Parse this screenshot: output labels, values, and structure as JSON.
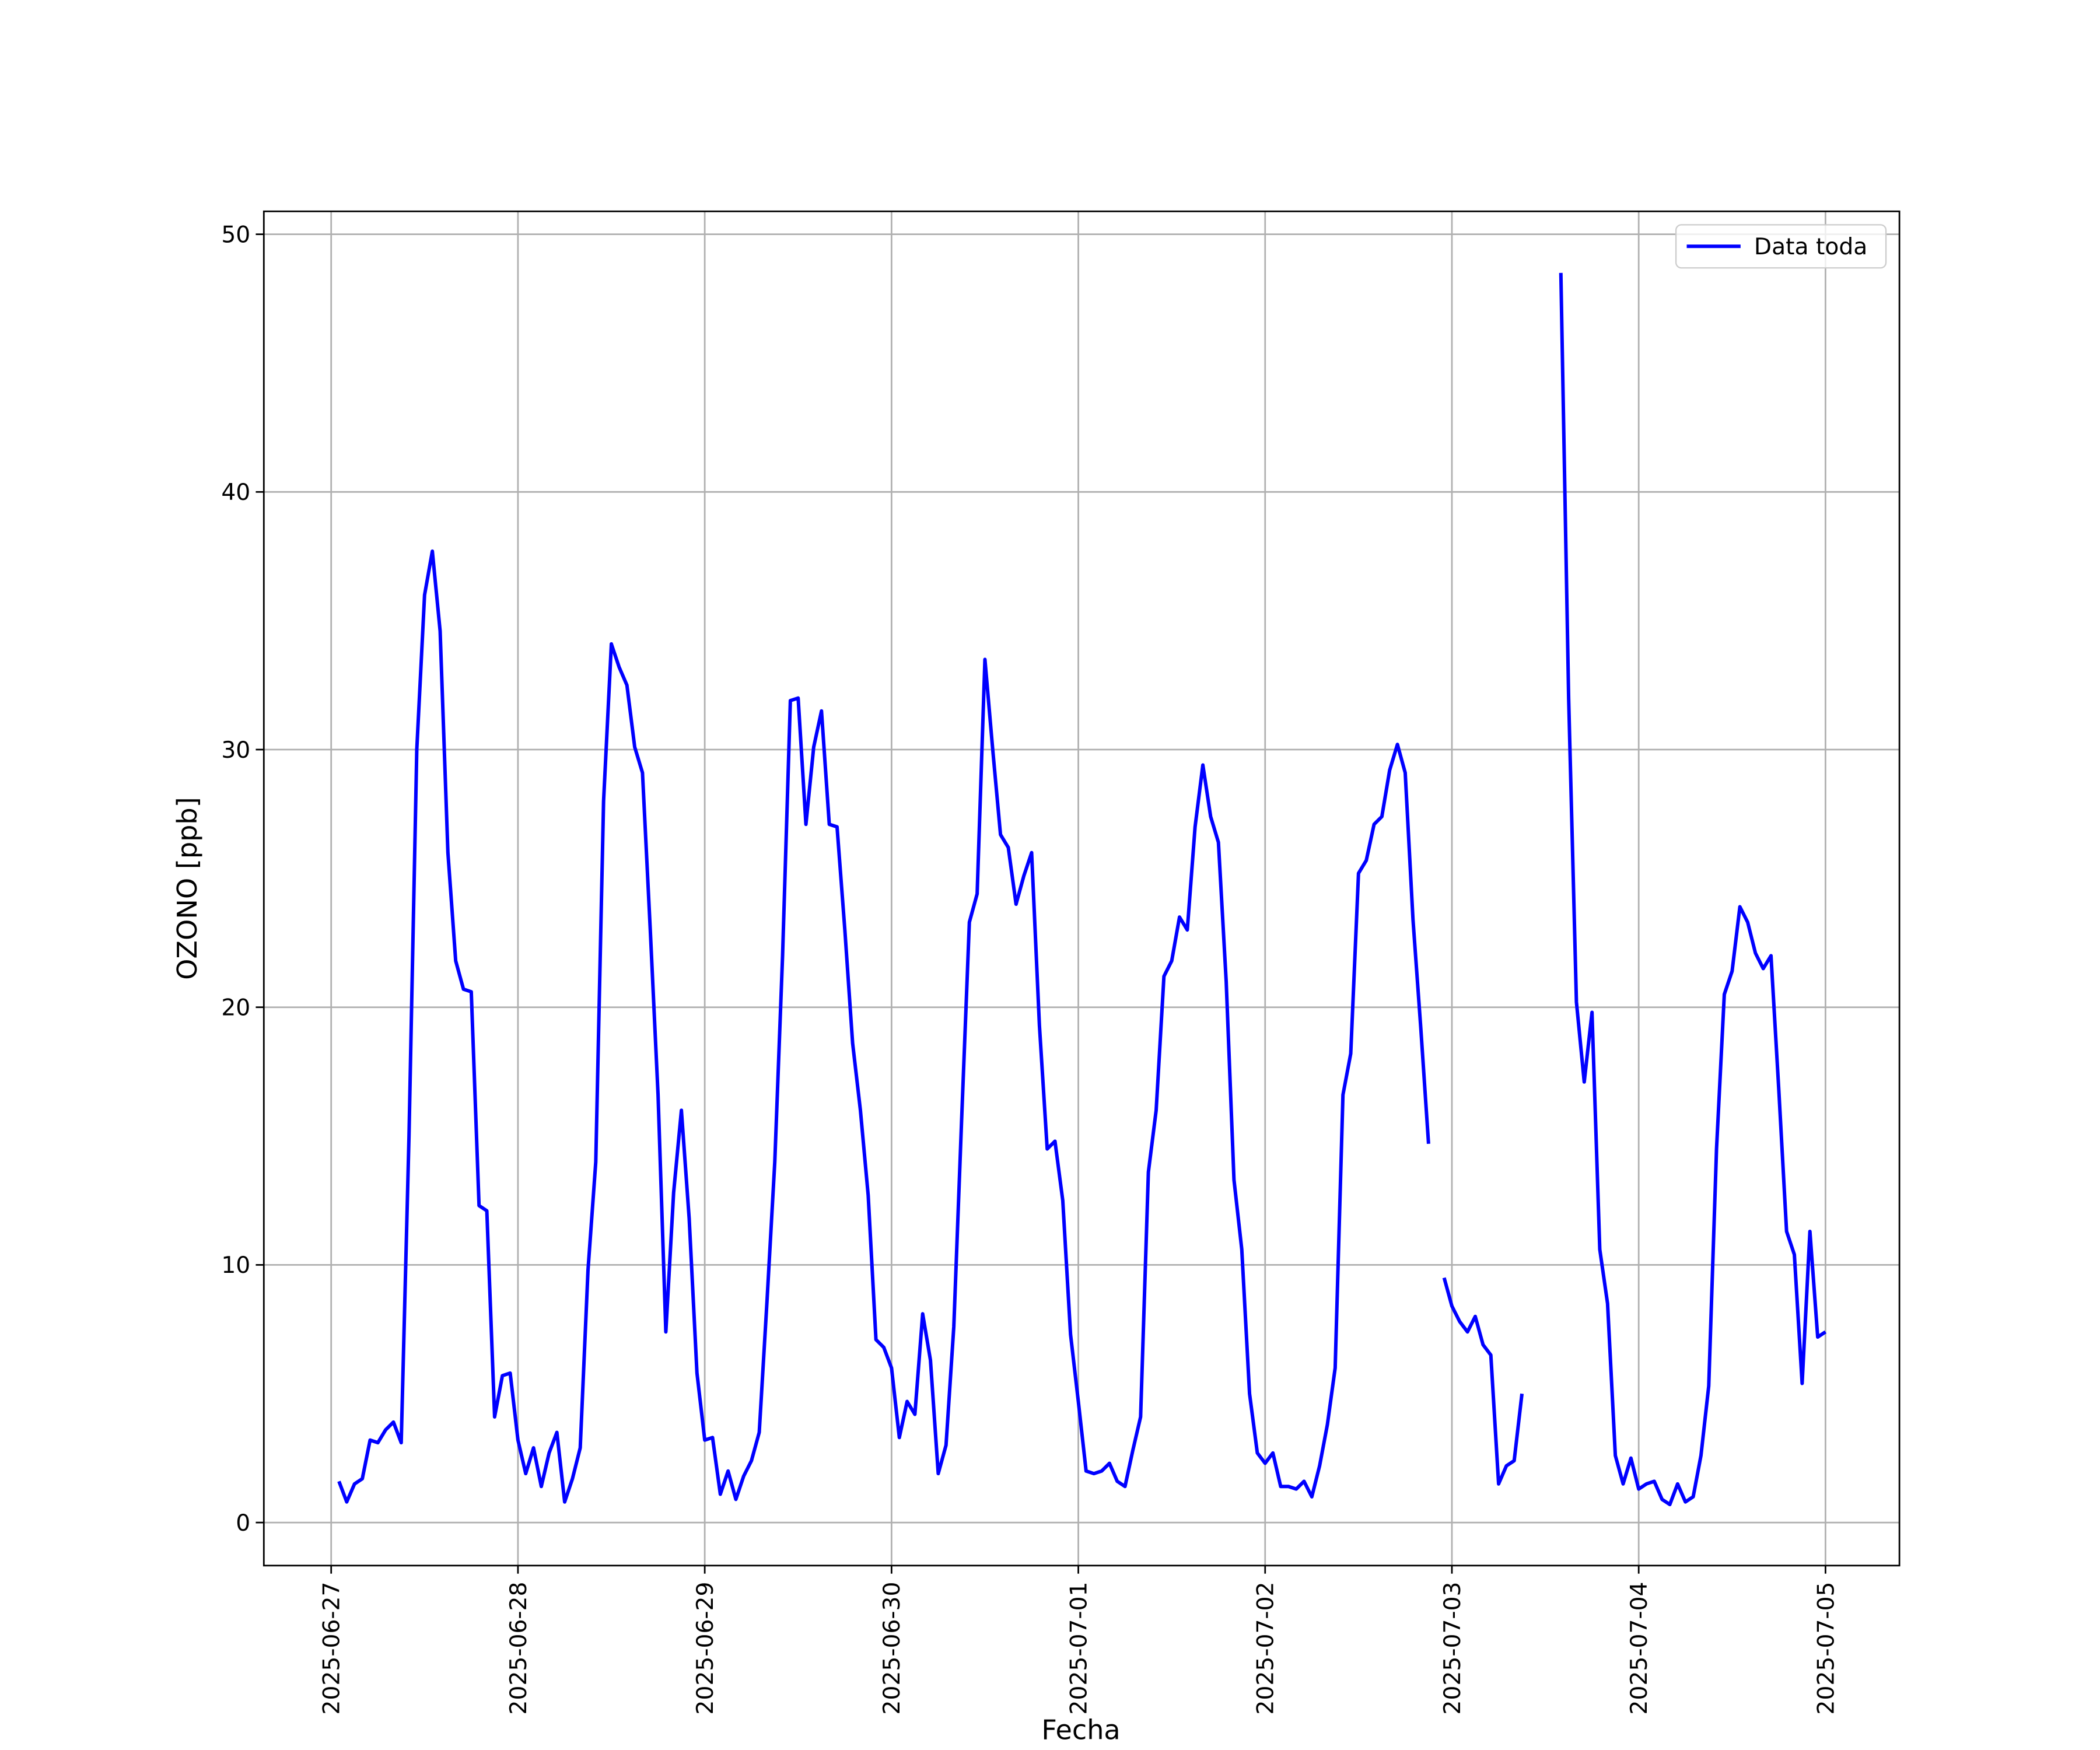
{
  "chart_data": {
    "type": "line",
    "xlabel": "Fecha",
    "ylabel": "OZONO [ppb]",
    "xlim": [
      "2025-06-26 15:21",
      "2025-07-05 09:30"
    ],
    "xticks": [
      "2025-06-27",
      "2025-06-28",
      "2025-06-29",
      "2025-06-30",
      "2025-07-01",
      "2025-07-02",
      "2025-07-03",
      "2025-07-04",
      "2025-07-05"
    ],
    "ylim": [
      -1.67,
      50.89
    ],
    "yticks": [
      0,
      10,
      20,
      30,
      40,
      50
    ],
    "grid": true,
    "legend": "upper right",
    "x": [
      "2025-06-27 01:00",
      "2025-06-27 02:00",
      "2025-06-27 03:00",
      "2025-06-27 04:00",
      "2025-06-27 05:00",
      "2025-06-27 06:00",
      "2025-06-27 07:00",
      "2025-06-27 08:00",
      "2025-06-27 09:00",
      "2025-06-27 10:00",
      "2025-06-27 11:00",
      "2025-06-27 12:00",
      "2025-06-27 13:00",
      "2025-06-27 14:00",
      "2025-06-27 15:00",
      "2025-06-27 16:00",
      "2025-06-27 17:00",
      "2025-06-27 18:00",
      "2025-06-27 19:00",
      "2025-06-27 20:00",
      "2025-06-27 21:00",
      "2025-06-27 22:00",
      "2025-06-27 23:00",
      "2025-06-28 00:00",
      "2025-06-28 01:00",
      "2025-06-28 02:00",
      "2025-06-28 03:00",
      "2025-06-28 04:00",
      "2025-06-28 05:00",
      "2025-06-28 06:00",
      "2025-06-28 07:00",
      "2025-06-28 08:00",
      "2025-06-28 09:00",
      "2025-06-28 10:00",
      "2025-06-28 11:00",
      "2025-06-28 12:00",
      "2025-06-28 13:00",
      "2025-06-28 14:00",
      "2025-06-28 15:00",
      "2025-06-28 16:00",
      "2025-06-28 17:00",
      "2025-06-28 18:00",
      "2025-06-28 19:00",
      "2025-06-28 20:00",
      "2025-06-28 21:00",
      "2025-06-28 22:00",
      "2025-06-28 23:00",
      "2025-06-29 00:00",
      "2025-06-29 01:00",
      "2025-06-29 02:00",
      "2025-06-29 03:00",
      "2025-06-29 04:00",
      "2025-06-29 05:00",
      "2025-06-29 06:00",
      "2025-06-29 07:00",
      "2025-06-29 08:00",
      "2025-06-29 09:00",
      "2025-06-29 10:00",
      "2025-06-29 11:00",
      "2025-06-29 12:00",
      "2025-06-29 13:00",
      "2025-06-29 14:00",
      "2025-06-29 15:00",
      "2025-06-29 16:00",
      "2025-06-29 17:00",
      "2025-06-29 18:00",
      "2025-06-29 19:00",
      "2025-06-29 20:00",
      "2025-06-29 21:00",
      "2025-06-29 22:00",
      "2025-06-29 23:00",
      "2025-06-30 00:00",
      "2025-06-30 01:00",
      "2025-06-30 02:00",
      "2025-06-30 03:00",
      "2025-06-30 04:00",
      "2025-06-30 05:00",
      "2025-06-30 06:00",
      "2025-06-30 07:00",
      "2025-06-30 08:00",
      "2025-06-30 09:00",
      "2025-06-30 10:00",
      "2025-06-30 11:00",
      "2025-06-30 12:00",
      "2025-06-30 13:00",
      "2025-06-30 14:00",
      "2025-06-30 15:00",
      "2025-06-30 16:00",
      "2025-06-30 17:00",
      "2025-06-30 18:00",
      "2025-06-30 19:00",
      "2025-06-30 20:00",
      "2025-06-30 21:00",
      "2025-06-30 22:00",
      "2025-06-30 23:00",
      "2025-07-01 00:00",
      "2025-07-01 01:00",
      "2025-07-01 02:00",
      "2025-07-01 03:00",
      "2025-07-01 04:00",
      "2025-07-01 05:00",
      "2025-07-01 06:00",
      "2025-07-01 07:00",
      "2025-07-01 08:00",
      "2025-07-01 09:00",
      "2025-07-01 10:00",
      "2025-07-01 11:00",
      "2025-07-01 12:00",
      "2025-07-01 13:00",
      "2025-07-01 14:00",
      "2025-07-01 15:00",
      "2025-07-01 16:00",
      "2025-07-01 17:00",
      "2025-07-01 18:00",
      "2025-07-01 19:00",
      "2025-07-01 20:00",
      "2025-07-01 21:00",
      "2025-07-01 22:00",
      "2025-07-01 23:00",
      "2025-07-02 00:00",
      "2025-07-02 01:00",
      "2025-07-02 02:00",
      "2025-07-02 03:00",
      "2025-07-02 04:00",
      "2025-07-02 05:00",
      "2025-07-02 06:00",
      "2025-07-02 07:00",
      "2025-07-02 08:00",
      "2025-07-02 09:00",
      "2025-07-02 10:00",
      "2025-07-02 11:00",
      "2025-07-02 12:00",
      "2025-07-02 13:00",
      "2025-07-02 14:00",
      "2025-07-02 15:00",
      "2025-07-02 16:00",
      "2025-07-02 17:00",
      "2025-07-02 18:00",
      "2025-07-02 19:00",
      "2025-07-02 20:00",
      "2025-07-02 21:00",
      "2025-07-02 22:00",
      "2025-07-02 23:00",
      "2025-07-03 00:00",
      "2025-07-03 01:00",
      "2025-07-03 02:00",
      "2025-07-03 03:00",
      "2025-07-03 04:00",
      "2025-07-03 05:00",
      "2025-07-03 06:00",
      "2025-07-03 07:00",
      "2025-07-03 08:00",
      "2025-07-03 09:00",
      "2025-07-03 10:00",
      "2025-07-03 11:00",
      "2025-07-03 12:00",
      "2025-07-03 13:00",
      "2025-07-03 14:00",
      "2025-07-03 15:00",
      "2025-07-03 16:00",
      "2025-07-03 17:00",
      "2025-07-03 18:00",
      "2025-07-03 19:00",
      "2025-07-03 20:00",
      "2025-07-03 21:00",
      "2025-07-03 22:00",
      "2025-07-03 23:00",
      "2025-07-04 00:00",
      "2025-07-04 01:00",
      "2025-07-04 02:00",
      "2025-07-04 03:00",
      "2025-07-04 04:00",
      "2025-07-04 05:00",
      "2025-07-04 06:00",
      "2025-07-04 07:00",
      "2025-07-04 08:00",
      "2025-07-04 09:00",
      "2025-07-04 10:00",
      "2025-07-04 11:00",
      "2025-07-04 12:00",
      "2025-07-04 13:00",
      "2025-07-04 14:00",
      "2025-07-04 15:00",
      "2025-07-04 16:00",
      "2025-07-04 17:00",
      "2025-07-04 18:00",
      "2025-07-04 19:00",
      "2025-07-04 20:00",
      "2025-07-04 21:00",
      "2025-07-04 22:00",
      "2025-07-04 23:00",
      "2025-07-05 00:00"
    ],
    "series": [
      {
        "name": "Data toda",
        "color": "#0000ff",
        "values": [
          1.6,
          0.8,
          1.5,
          1.7,
          3.2,
          3.1,
          3.6,
          3.9,
          3.1,
          15,
          30,
          36,
          37.7,
          34.6,
          26,
          21.8,
          20.7,
          20.6,
          12.3,
          12.1,
          4.1,
          5.7,
          5.8,
          3.2,
          1.9,
          2.9,
          1.4,
          2.7,
          3.5,
          0.8,
          1.7,
          2.9,
          9.8,
          14,
          28,
          34.1,
          33.2,
          32.5,
          30.1,
          29.1,
          23,
          16.6,
          7.4,
          12.8,
          16,
          11.8,
          5.8,
          3.2,
          3.3,
          1.1,
          2.0,
          0.9,
          1.8,
          2.4,
          3.5,
          8.6,
          14,
          22,
          31.9,
          32,
          27.1,
          30.1,
          31.5,
          27.1,
          27,
          23,
          18.6,
          16,
          12.7,
          7.1,
          6.8,
          6.0,
          3.3,
          4.7,
          4.2,
          8.1,
          6.3,
          1.9,
          3.0,
          7.6,
          15.6,
          23.3,
          24.4,
          33.5,
          30,
          26.7,
          26.2,
          24,
          25.1,
          26,
          19.3,
          14.5,
          14.8,
          12.5,
          7.3,
          4.7,
          2.0,
          1.9,
          2.0,
          2.3,
          1.6,
          1.4,
          2.8,
          4.1,
          13.6,
          16,
          21.2,
          21.8,
          23.5,
          23.0,
          27,
          29.4,
          27.4,
          26.4,
          21,
          13.3,
          10.6,
          5,
          2.7,
          2.3,
          2.7,
          1.4,
          1.4,
          1.3,
          1.6,
          1.0,
          2.2,
          3.8,
          6.0,
          16.6,
          18.2,
          25.2,
          25.7,
          27.1,
          27.4,
          29.2,
          30.2,
          29.1,
          23.4,
          19.2,
          14.7,
          null,
          9.5,
          8.4,
          7.8,
          7.4,
          8.0,
          6.9,
          6.5,
          1.5,
          2.2,
          2.4,
          5.0,
          null,
          null,
          null,
          null,
          48.5,
          32,
          20.2,
          17.1,
          19.8,
          10.6,
          8.5,
          2.6,
          1.5,
          2.5,
          1.3,
          1.5,
          1.6,
          0.9,
          0.7,
          1.5,
          0.8,
          1.0,
          2.6,
          5.3,
          14.5,
          20.5,
          21.4,
          23.9,
          23.3,
          22.1,
          21.5,
          22,
          16.8,
          11.3,
          10.4,
          5.4,
          11.3,
          7.2,
          7.4
        ]
      }
    ]
  }
}
